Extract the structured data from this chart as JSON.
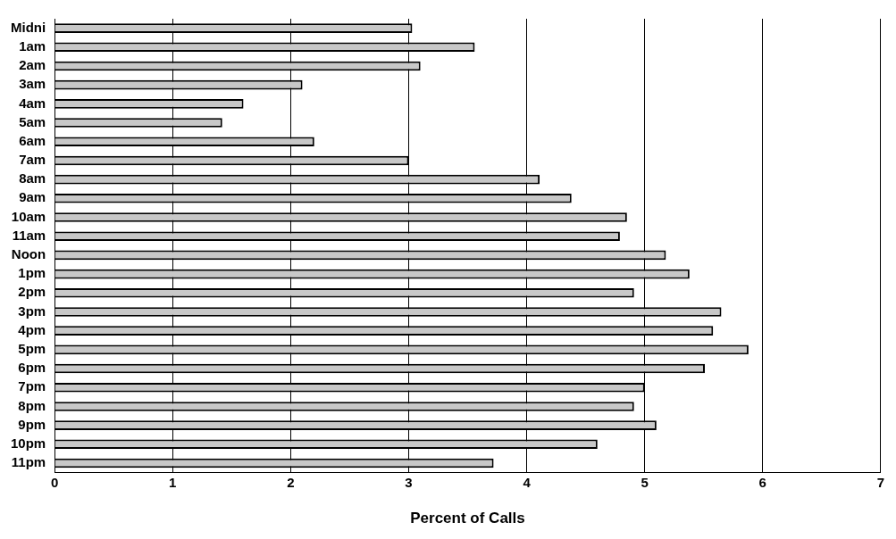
{
  "chart_data": {
    "type": "bar",
    "orientation": "horizontal",
    "xlabel": "Percent of Calls",
    "categories": [
      "Midni",
      "1am",
      "2am",
      "3am",
      "4am",
      "5am",
      "6am",
      "7am",
      "8am",
      "9am",
      "10am",
      "11am",
      "Noon",
      "1pm",
      "2pm",
      "3pm",
      "4pm",
      "5pm",
      "6pm",
      "7pm",
      "8pm",
      "9pm",
      "10pm",
      "11pm"
    ],
    "values": [
      3.03,
      3.56,
      3.1,
      2.1,
      1.6,
      1.42,
      2.2,
      3.0,
      4.11,
      4.38,
      4.85,
      4.79,
      5.18,
      5.38,
      4.91,
      5.65,
      5.58,
      5.88,
      5.51,
      5.0,
      4.91,
      5.1,
      4.6,
      3.72
    ],
    "color": "#c8c8c8",
    "xlim": [
      0,
      7
    ],
    "xticks": [
      0,
      1,
      2,
      3,
      4,
      5,
      6,
      7
    ],
    "grid": "x",
    "legend": false
  }
}
